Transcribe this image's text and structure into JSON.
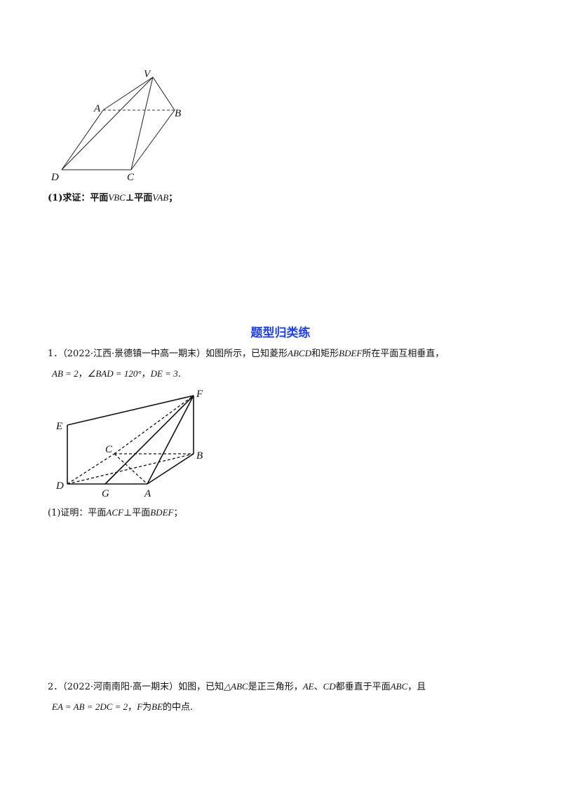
{
  "figure1": {
    "labels": {
      "V": "V",
      "A": "A",
      "B": "B",
      "C": "C",
      "D": "D"
    }
  },
  "q_prev_part1": {
    "prefix": "(1)求证：平面",
    "plane1": "VBC",
    "perp": "⊥",
    "mid": "平面",
    "plane2": "VAB",
    "end": "；"
  },
  "section_title": "题型归类练",
  "problem1": {
    "num": "1．",
    "source": "（2022·江西·景德镇一中高一期末）",
    "text_a": "如图所示，已知菱形",
    "abcd": "ABCD",
    "text_b": "和矩形",
    "bdef": "BDEF",
    "text_c": "所在平面互相垂直，",
    "cond1": "AB = 2",
    "sep1": "，",
    "cond2": "∠BAD = 120°",
    "sep2": "，",
    "cond3": "DE = 3",
    "end": "."
  },
  "figure2": {
    "labels": {
      "F": "F",
      "E": "E",
      "C": "C",
      "B": "B",
      "D": "D",
      "G": "G",
      "A": "A"
    }
  },
  "problem1_part1": {
    "prefix": "(1)证明：平面",
    "plane1": "ACF",
    "perp": "⊥",
    "mid": "平面",
    "plane2": "BDEF",
    "end": "；"
  },
  "problem2": {
    "num": "2．",
    "source": "（2022·河南南阳·高一期末）",
    "text_a": "如图，已知",
    "tri": "△ABC",
    "text_b": "是正三角形，",
    "ae": "AE",
    "sep": "、",
    "cd": "CD",
    "text_c": "都垂直于平面",
    "abc": "ABC",
    "text_d": "，且",
    "cond": "EA = AB = 2DC = 2",
    "sep2": "，",
    "f": "F",
    "text_e": "为",
    "be": "BE",
    "text_f": "的中点."
  }
}
